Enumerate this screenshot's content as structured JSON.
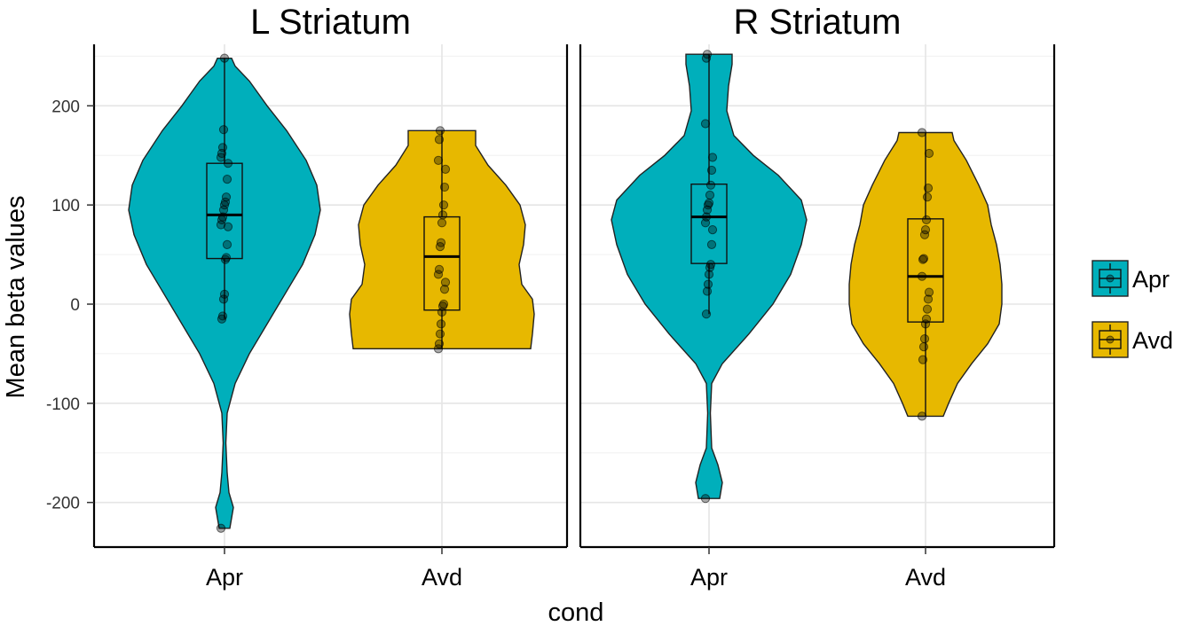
{
  "chart_data": {
    "type": "violin",
    "xlabel": "cond",
    "ylabel": "Mean beta values",
    "ylim": [
      -245,
      262
    ],
    "yticks": [
      -200,
      -100,
      0,
      100,
      200
    ],
    "ytick_labels": [
      "-200",
      "-100",
      "0",
      "100",
      "200"
    ],
    "categories": [
      "Apr",
      "Avd"
    ],
    "grid": true,
    "legend": {
      "position": "right",
      "entries": [
        {
          "name": "Apr",
          "color": "#00AFBB"
        },
        {
          "name": "Avd",
          "color": "#E7B800"
        }
      ]
    },
    "panels": [
      {
        "title": "L Striatum",
        "groups": [
          {
            "cat": "Apr",
            "color": "#00AFBB",
            "box": {
              "q1": 46,
              "median": 90,
              "q3": 142,
              "lower": -15,
              "upper": 248
            },
            "violin": [
              [
                -226,
                6
              ],
              [
                -205,
                10
              ],
              [
                -190,
                5
              ],
              [
                -170,
                3
              ],
              [
                -140,
                1.5
              ],
              [
                -110,
                3
              ],
              [
                -80,
                12
              ],
              [
                -50,
                28
              ],
              [
                -20,
                48
              ],
              [
                10,
                68
              ],
              [
                40,
                88
              ],
              [
                70,
                102
              ],
              [
                95,
                108
              ],
              [
                120,
                104
              ],
              [
                145,
                92
              ],
              [
                175,
                70
              ],
              [
                200,
                48
              ],
              [
                225,
                28
              ],
              [
                240,
                12
              ],
              [
                248,
                8
              ]
            ],
            "points": [
              -226,
              -15,
              -12,
              5,
              10,
              45,
              47,
              60,
              78,
              80,
              85,
              88,
              95,
              100,
              103,
              108,
              126,
              142,
              148,
              152,
              158,
              176,
              248
            ]
          },
          {
            "cat": "Avd",
            "color": "#E7B800",
            "box": {
              "q1": -6,
              "median": 48,
              "q3": 88,
              "lower": -45,
              "upper": 175
            },
            "violin": [
              [
                -45,
                100
              ],
              [
                -30,
                102
              ],
              [
                -10,
                104
              ],
              [
                5,
                102
              ],
              [
                20,
                90
              ],
              [
                40,
                87
              ],
              [
                60,
                92
              ],
              [
                80,
                94
              ],
              [
                100,
                88
              ],
              [
                120,
                72
              ],
              [
                140,
                52
              ],
              [
                160,
                38
              ],
              [
                175,
                38
              ]
            ],
            "points": [
              -45,
              -40,
              -30,
              -20,
              -8,
              -2,
              0,
              15,
              22,
              30,
              35,
              58,
              62,
              82,
              90,
              100,
              118,
              136,
              145,
              166,
              175
            ]
          }
        ]
      },
      {
        "title": "R Striatum",
        "groups": [
          {
            "cat": "Apr",
            "color": "#00AFBB",
            "box": {
              "q1": 41,
              "median": 88,
              "q3": 121,
              "lower": -10,
              "upper": 252
            },
            "violin": [
              [
                -196,
                12
              ],
              [
                -180,
                15
              ],
              [
                -162,
                10
              ],
              [
                -145,
                3
              ],
              [
                -110,
                1.5
              ],
              [
                -80,
                3
              ],
              [
                -60,
                15
              ],
              [
                -30,
                45
              ],
              [
                0,
                72
              ],
              [
                30,
                92
              ],
              [
                60,
                104
              ],
              [
                85,
                110
              ],
              [
                105,
                104
              ],
              [
                130,
                78
              ],
              [
                150,
                50
              ],
              [
                170,
                28
              ],
              [
                195,
                20
              ],
              [
                220,
                22
              ],
              [
                242,
                26
              ],
              [
                252,
                26
              ]
            ],
            "points": [
              -196,
              -10,
              13,
              20,
              30,
              37,
              40,
              60,
              75,
              82,
              88,
              95,
              100,
              102,
              110,
              120,
              135,
              148,
              182,
              248,
              252
            ]
          },
          {
            "cat": "Avd",
            "color": "#E7B800",
            "box": {
              "q1": -18,
              "median": 28,
              "q3": 86,
              "lower": -113,
              "upper": 173
            },
            "violin": [
              [
                -113,
                20
              ],
              [
                -100,
                26
              ],
              [
                -80,
                36
              ],
              [
                -60,
                52
              ],
              [
                -40,
                70
              ],
              [
                -20,
                83
              ],
              [
                0,
                86
              ],
              [
                20,
                86
              ],
              [
                40,
                84
              ],
              [
                60,
                80
              ],
              [
                80,
                74
              ],
              [
                100,
                70
              ],
              [
                120,
                60
              ],
              [
                145,
                46
              ],
              [
                165,
                32
              ],
              [
                173,
                30
              ]
            ],
            "points": [
              -113,
              -56,
              -43,
              -35,
              -20,
              -15,
              -5,
              5,
              12,
              28,
              45,
              46,
              70,
              75,
              85,
              108,
              117,
              152,
              173
            ]
          }
        ]
      }
    ]
  }
}
